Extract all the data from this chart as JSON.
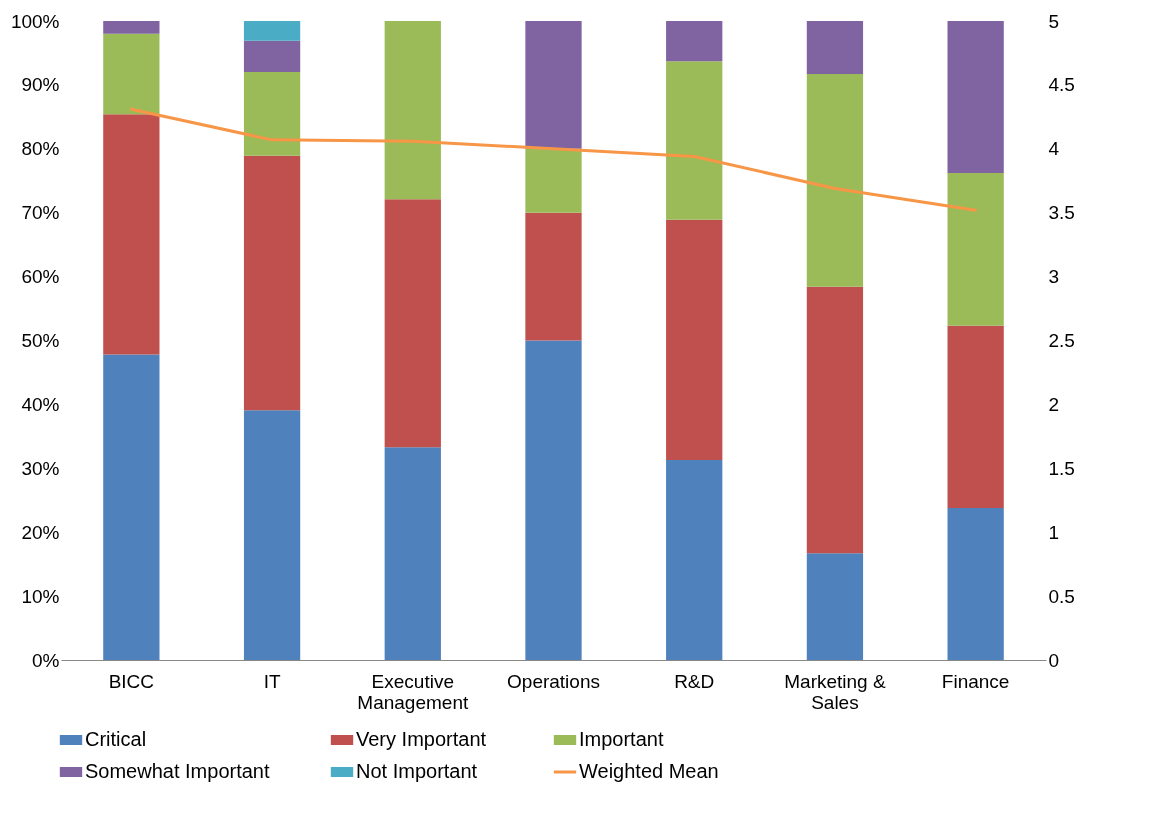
{
  "chart_data": {
    "type": "bar",
    "stacked": true,
    "legend": "bottom",
    "grid": false,
    "categories": [
      "BICC",
      "IT",
      "Executive Management",
      "Operations",
      "R&D",
      "Marketing & Sales",
      "Finance"
    ],
    "series": [
      {
        "name": "Critical",
        "color": "#4f81bd",
        "values": [
          47.8,
          39.1,
          33.3,
          50,
          31.3,
          16.7,
          23.8
        ]
      },
      {
        "name": "Very Important",
        "color": "#c0504d",
        "values": [
          37.6,
          39.8,
          38.8,
          20,
          37.6,
          41.7,
          28.5
        ]
      },
      {
        "name": "Important",
        "color": "#9bbb59",
        "values": [
          12.6,
          13.1,
          27.9,
          10,
          24.8,
          33.3,
          23.9
        ]
      },
      {
        "name": "Somewhat Important",
        "color": "#8064a2",
        "values": [
          2.0,
          4.9,
          0,
          20,
          6.3,
          8.3,
          23.8
        ]
      },
      {
        "name": "Not Important",
        "color": "#4bacc6",
        "values": [
          0,
          3.1,
          0,
          0,
          0,
          0,
          0
        ]
      },
      {
        "name": "Weighted Mean",
        "color": "#f79646",
        "type": "line",
        "axis": "y2",
        "values": [
          4.31,
          4.07,
          4.06,
          4.0,
          3.94,
          3.69,
          3.52
        ]
      }
    ],
    "ylim": [
      0,
      100
    ],
    "yticks": [
      {
        "value": 0,
        "label": "0%"
      },
      {
        "value": 10,
        "label": "10%"
      },
      {
        "value": 20,
        "label": "20%"
      },
      {
        "value": 30,
        "label": "30%"
      },
      {
        "value": 40,
        "label": "40%"
      },
      {
        "value": 50,
        "label": "50%"
      },
      {
        "value": 60,
        "label": "60%"
      },
      {
        "value": 70,
        "label": "70%"
      },
      {
        "value": 80,
        "label": "80%"
      },
      {
        "value": 90,
        "label": "90%"
      },
      {
        "value": 100,
        "label": "100%"
      }
    ],
    "y2lim": [
      0,
      5
    ],
    "y2ticks": [
      0,
      0.5,
      1,
      1.5,
      2,
      2.5,
      3,
      3.5,
      4,
      4.5,
      5
    ]
  }
}
